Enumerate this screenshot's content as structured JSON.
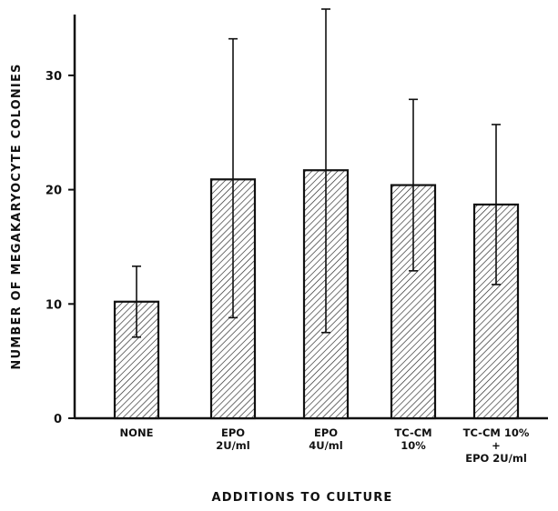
{
  "chart_data": {
    "type": "bar",
    "title": "",
    "xlabel": "ADDITIONS TO CULTURE",
    "ylabel": "NUMBER OF MEGAKARYOCYTE COLONIES",
    "ylim": [
      0,
      35
    ],
    "yticks": [
      0,
      10,
      20,
      30
    ],
    "grid": false,
    "bar_fill": "diagonal-hatch",
    "categories": [
      [
        "NONE"
      ],
      [
        "EPO",
        "2U/ml"
      ],
      [
        "EPO",
        "4U/ml"
      ],
      [
        "TC-CM",
        "10%"
      ],
      [
        "TC-CM 10%",
        "+",
        "EPO 2U/ml"
      ]
    ],
    "values": [
      10.2,
      20.9,
      21.7,
      20.4,
      18.7
    ],
    "error_plus": [
      3.1,
      12.3,
      14.1,
      7.5,
      7.0
    ],
    "error_minus": [
      3.1,
      12.1,
      14.2,
      7.5,
      7.0
    ]
  }
}
